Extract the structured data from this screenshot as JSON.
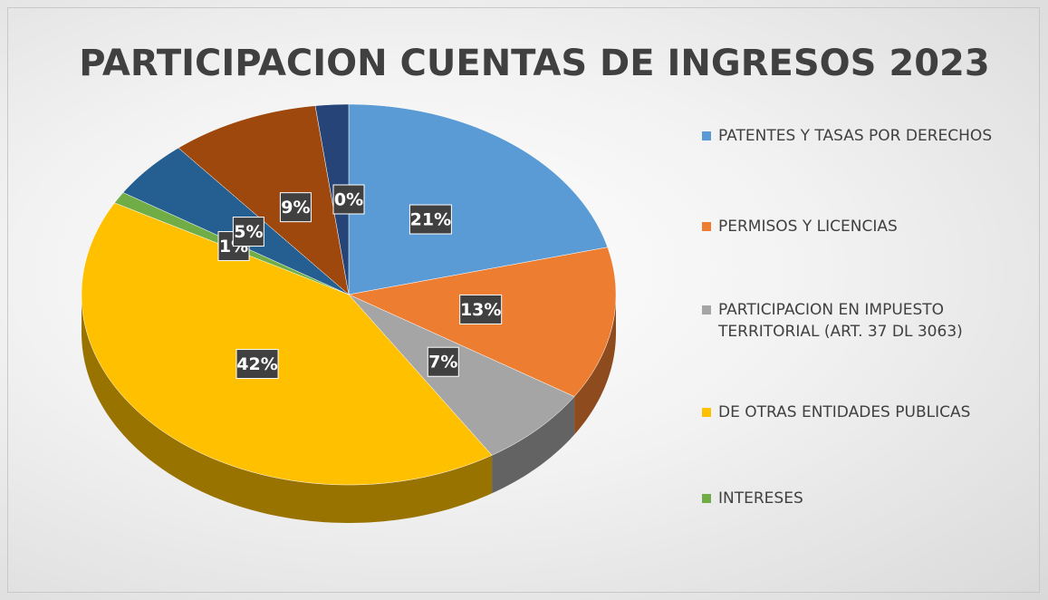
{
  "chart_data": {
    "type": "pie3d",
    "title": "PARTICIPACION CUENTAS DE INGRESOS 2023",
    "categories": [
      "PATENTES Y TASAS POR DERECHOS",
      "PERMISOS Y LICENCIAS",
      "PARTICIPACION EN IMPUESTO TERRITORIAL (ART. 37 DL 3063)",
      "DE OTRAS ENTIDADES PUBLICAS",
      "INTERESES",
      null,
      null,
      null,
      null,
      null
    ],
    "values": [
      21,
      13,
      7,
      42,
      1,
      5,
      9,
      0,
      2,
      0
    ],
    "value_labels": [
      "21%",
      "13%",
      "7%",
      "42%",
      "1%",
      "5%",
      "9%",
      null,
      null,
      "0%"
    ],
    "colors": [
      "#5b9bd5",
      "#ed7d31",
      "#a5a5a5",
      "#ffc000",
      "#70ad47",
      "#255e91",
      "#9e480e",
      "#997300",
      "#264478",
      "#b7b7b7"
    ],
    "legend": "right"
  }
}
